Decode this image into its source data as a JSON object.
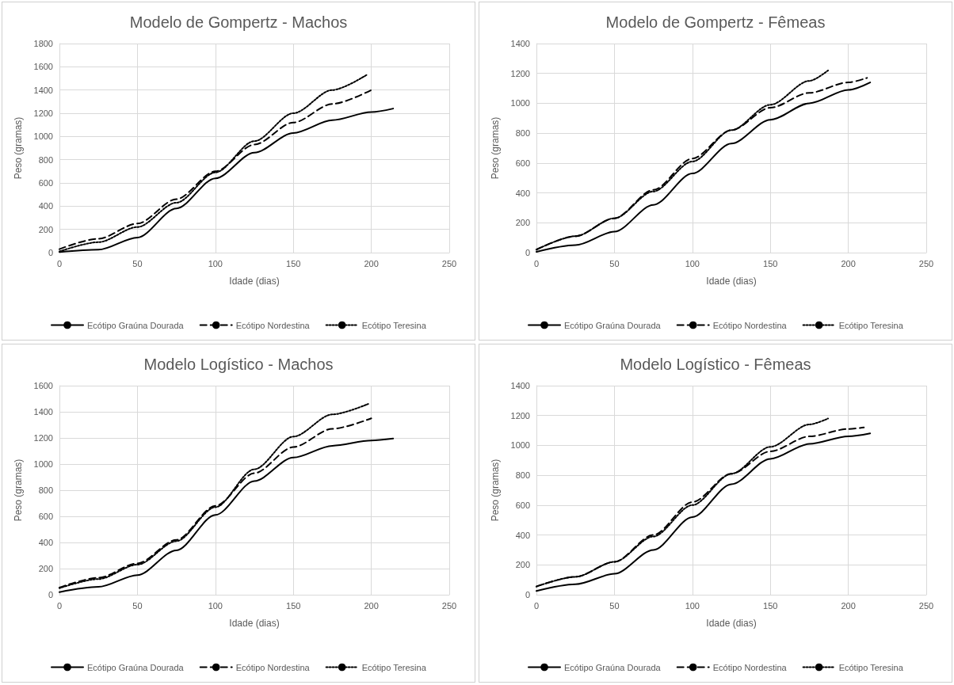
{
  "chart_data": [
    {
      "type": "line",
      "title": "Modelo de Gompertz - Machos",
      "xlabel": "Idade (dias)",
      "ylabel": "Peso (gramas)",
      "xlim": [
        0,
        250
      ],
      "xticks": [
        0,
        50,
        100,
        150,
        200,
        250
      ],
      "ylim": [
        0,
        1800
      ],
      "yticks": [
        0,
        200,
        400,
        600,
        800,
        1000,
        1200,
        1400,
        1600,
        1800
      ],
      "grid": true,
      "legend": "bottom",
      "marker": "none",
      "series": [
        {
          "name": "Ecótipo Graúna Dourada",
          "color": "#000000",
          "line_style": "solid",
          "x": [
            0,
            25,
            50,
            75,
            100,
            125,
            150,
            175,
            200,
            214
          ],
          "values": [
            5,
            25,
            130,
            380,
            640,
            860,
            1030,
            1140,
            1210,
            1240
          ]
        },
        {
          "name": "Ecótipo Nordestina",
          "color": "#000000",
          "line_style": "dashed",
          "x": [
            0,
            25,
            50,
            75,
            100,
            125,
            150,
            175,
            200
          ],
          "values": [
            30,
            120,
            250,
            460,
            700,
            930,
            1120,
            1280,
            1400
          ]
        },
        {
          "name": "Ecótipo Teresina",
          "color": "#000000",
          "line_style": "dotted",
          "x": [
            0,
            25,
            50,
            75,
            100,
            125,
            150,
            175,
            197
          ],
          "values": [
            10,
            90,
            220,
            430,
            690,
            960,
            1200,
            1400,
            1530
          ]
        }
      ]
    },
    {
      "type": "line",
      "title": "Modelo de Gompertz - Fêmeas",
      "xlabel": "Idade (dias)",
      "ylabel": "Peso (gramas)",
      "xlim": [
        0,
        250
      ],
      "xticks": [
        0,
        50,
        100,
        150,
        200,
        250
      ],
      "ylim": [
        0,
        1400
      ],
      "yticks": [
        0,
        200,
        400,
        600,
        800,
        1000,
        1200,
        1400
      ],
      "grid": true,
      "legend": "bottom",
      "marker": "none",
      "series": [
        {
          "name": "Ecótipo Graúna Dourada",
          "color": "#000000",
          "line_style": "solid",
          "x": [
            0,
            25,
            50,
            75,
            100,
            125,
            150,
            175,
            200,
            214
          ],
          "values": [
            5,
            50,
            140,
            320,
            530,
            730,
            890,
            1000,
            1090,
            1140
          ]
        },
        {
          "name": "Ecótipo Nordestina",
          "color": "#000000",
          "line_style": "dashed",
          "x": [
            0,
            25,
            50,
            75,
            100,
            125,
            150,
            175,
            200,
            212
          ],
          "values": [
            20,
            110,
            230,
            420,
            630,
            820,
            970,
            1070,
            1140,
            1170
          ]
        },
        {
          "name": "Ecótipo Teresina",
          "color": "#000000",
          "line_style": "dotted",
          "x": [
            0,
            25,
            50,
            75,
            100,
            125,
            150,
            175,
            187
          ],
          "values": [
            20,
            110,
            230,
            410,
            610,
            820,
            990,
            1150,
            1220
          ]
        }
      ]
    },
    {
      "type": "line",
      "title": "Modelo Logístico - Machos",
      "xlabel": "Idade (dias)",
      "ylabel": "Peso (gramas)",
      "xlim": [
        0,
        250
      ],
      "xticks": [
        0,
        50,
        100,
        150,
        200,
        250
      ],
      "ylim": [
        0,
        1600
      ],
      "yticks": [
        0,
        200,
        400,
        600,
        800,
        1000,
        1200,
        1400,
        1600
      ],
      "grid": true,
      "legend": "bottom",
      "marker": "none",
      "series": [
        {
          "name": "Ecótipo Graúna Dourada",
          "color": "#000000",
          "line_style": "solid",
          "x": [
            0,
            25,
            50,
            75,
            100,
            125,
            150,
            175,
            200,
            214
          ],
          "values": [
            20,
            60,
            150,
            340,
            610,
            870,
            1050,
            1140,
            1180,
            1195
          ]
        },
        {
          "name": "Ecótipo Nordestina",
          "color": "#000000",
          "line_style": "dashed",
          "x": [
            0,
            25,
            50,
            75,
            100,
            125,
            150,
            175,
            200
          ],
          "values": [
            55,
            130,
            240,
            420,
            680,
            930,
            1130,
            1270,
            1350
          ]
        },
        {
          "name": "Ecótipo Teresina",
          "color": "#000000",
          "line_style": "dotted",
          "x": [
            0,
            25,
            50,
            75,
            100,
            125,
            150,
            175,
            198
          ],
          "values": [
            50,
            120,
            230,
            410,
            670,
            960,
            1210,
            1380,
            1460
          ]
        }
      ]
    },
    {
      "type": "line",
      "title": "Modelo Logístico - Fêmeas",
      "xlabel": "Idade (dias)",
      "ylabel": "Peso (gramas)",
      "xlim": [
        0,
        250
      ],
      "xticks": [
        0,
        50,
        100,
        150,
        200,
        250
      ],
      "ylim": [
        0,
        1400
      ],
      "yticks": [
        0,
        200,
        400,
        600,
        800,
        1000,
        1200,
        1400
      ],
      "grid": true,
      "legend": "bottom",
      "marker": "none",
      "series": [
        {
          "name": "Ecótipo Graúna Dourada",
          "color": "#000000",
          "line_style": "solid",
          "x": [
            0,
            25,
            50,
            75,
            100,
            125,
            150,
            175,
            200,
            214
          ],
          "values": [
            25,
            70,
            140,
            300,
            520,
            740,
            910,
            1010,
            1060,
            1080
          ]
        },
        {
          "name": "Ecótipo Nordestina",
          "color": "#000000",
          "line_style": "dashed",
          "x": [
            0,
            25,
            50,
            75,
            100,
            125,
            150,
            175,
            200,
            210
          ],
          "values": [
            55,
            120,
            220,
            400,
            620,
            810,
            960,
            1060,
            1110,
            1120
          ]
        },
        {
          "name": "Ecótipo Teresina",
          "color": "#000000",
          "line_style": "dotted",
          "x": [
            0,
            25,
            50,
            75,
            100,
            125,
            150,
            175,
            187
          ],
          "values": [
            55,
            120,
            220,
            390,
            600,
            810,
            990,
            1140,
            1180
          ]
        }
      ]
    }
  ]
}
